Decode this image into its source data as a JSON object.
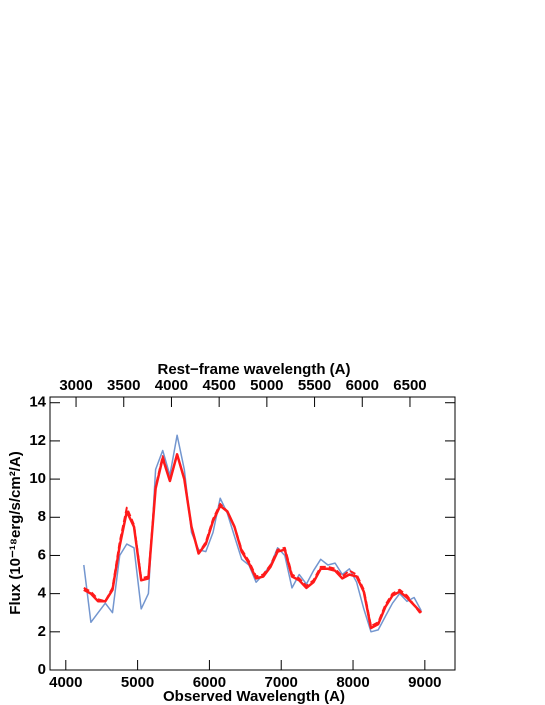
{
  "chart_data": {
    "type": "line",
    "title": "Rest−frame wavelength (A)",
    "x_label": "Observed Wavelength (A)",
    "y_label": "Flux (10⁻¹⁸erg/s/cm²/A)",
    "x": [
      4250,
      4350,
      4450,
      4550,
      4650,
      4750,
      4850,
      4950,
      5050,
      5150,
      5250,
      5350,
      5450,
      5550,
      5650,
      5750,
      5850,
      5950,
      6050,
      6150,
      6250,
      6350,
      6450,
      6550,
      6650,
      6750,
      6850,
      6950,
      7050,
      7150,
      7250,
      7350,
      7450,
      7550,
      7650,
      7750,
      7850,
      7950,
      8050,
      8150,
      8250,
      8350,
      8450,
      8550,
      8650,
      8750,
      8850,
      8950
    ],
    "series": [
      {
        "color": "#7396cf",
        "style": "solid",
        "width": 1.5,
        "values": [
          5.5,
          2.5,
          3.0,
          3.5,
          3.0,
          6.0,
          6.6,
          6.4,
          3.2,
          4.0,
          10.5,
          11.5,
          10.2,
          12.3,
          10.5,
          7.2,
          6.3,
          6.2,
          7.2,
          9.0,
          8.2,
          7.0,
          5.8,
          5.5,
          4.6,
          5.0,
          5.5,
          6.4,
          6.0,
          4.3,
          5.0,
          4.5,
          5.2,
          5.8,
          5.5,
          5.6,
          5.0,
          5.3,
          4.6,
          3.2,
          2.0,
          2.1,
          2.8,
          3.5,
          4.0,
          3.6,
          3.8,
          3.1
        ]
      },
      {
        "color": "#ff1a1a",
        "style": "dashed",
        "width": 2,
        "values": [
          4.3,
          4.1,
          3.7,
          3.6,
          4.3,
          6.7,
          8.5,
          7.6,
          4.8,
          4.9,
          9.6,
          11.2,
          9.9,
          11.3,
          10.0,
          7.5,
          6.1,
          6.7,
          7.9,
          8.7,
          8.3,
          7.5,
          6.3,
          5.7,
          4.9,
          5.0,
          5.5,
          6.3,
          6.4,
          5.0,
          4.8,
          4.4,
          4.7,
          5.4,
          5.4,
          5.3,
          4.9,
          5.2,
          5.0,
          4.2,
          2.3,
          2.5,
          3.4,
          4.0,
          4.2,
          3.9,
          3.4,
          2.9
        ]
      },
      {
        "color": "#ff1a1a",
        "style": "solid",
        "width": 2.5,
        "values": [
          4.2,
          4.0,
          3.6,
          3.6,
          4.2,
          6.5,
          8.3,
          7.5,
          4.7,
          4.8,
          9.5,
          11.1,
          9.9,
          11.3,
          10.0,
          7.5,
          6.1,
          6.6,
          7.8,
          8.6,
          8.3,
          7.5,
          6.2,
          5.6,
          4.8,
          4.9,
          5.4,
          6.2,
          6.3,
          4.9,
          4.7,
          4.3,
          4.6,
          5.3,
          5.3,
          5.2,
          4.8,
          5.0,
          4.9,
          4.1,
          2.2,
          2.4,
          3.3,
          3.9,
          4.1,
          3.8,
          3.4,
          3.0
        ]
      }
    ],
    "xlim": [
      3780,
      9420
    ],
    "xticks": [
      4000,
      5000,
      6000,
      7000,
      8000,
      9000
    ],
    "x2lim": [
      2727,
      6972
    ],
    "x2ticks": [
      3000,
      3500,
      4000,
      4500,
      5000,
      5500,
      6000,
      6500
    ],
    "ylim": [
      0,
      14.3
    ],
    "yticks": [
      0,
      2,
      4,
      6,
      8,
      10,
      12,
      14
    ]
  }
}
